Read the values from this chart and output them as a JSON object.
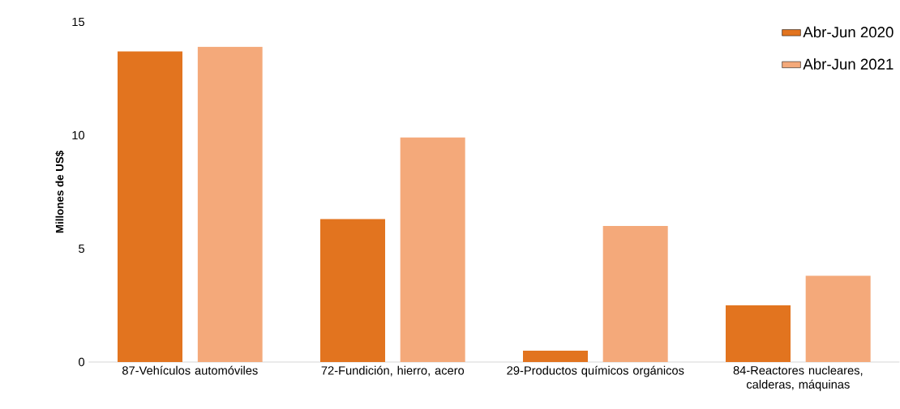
{
  "chart_data": {
    "type": "bar",
    "categories": [
      "87-Vehículos automóviles",
      "72-Fundición, hierro, acero",
      "29-Productos químicos orgánicos",
      "84-Reactores nucleares, calderas, máquinas"
    ],
    "series": [
      {
        "name": "Abr-Jun 2020",
        "color": "#e2741f",
        "values": [
          13.7,
          6.3,
          0.5,
          2.5
        ]
      },
      {
        "name": "Abr-Jun 2021",
        "color": "#f4a97a",
        "values": [
          13.9,
          9.9,
          6.0,
          3.8
        ]
      }
    ],
    "ylabel": "Millones de US$",
    "ylim": [
      0,
      15
    ],
    "yticks": [
      0,
      5,
      10,
      15
    ],
    "legend": "top right"
  }
}
